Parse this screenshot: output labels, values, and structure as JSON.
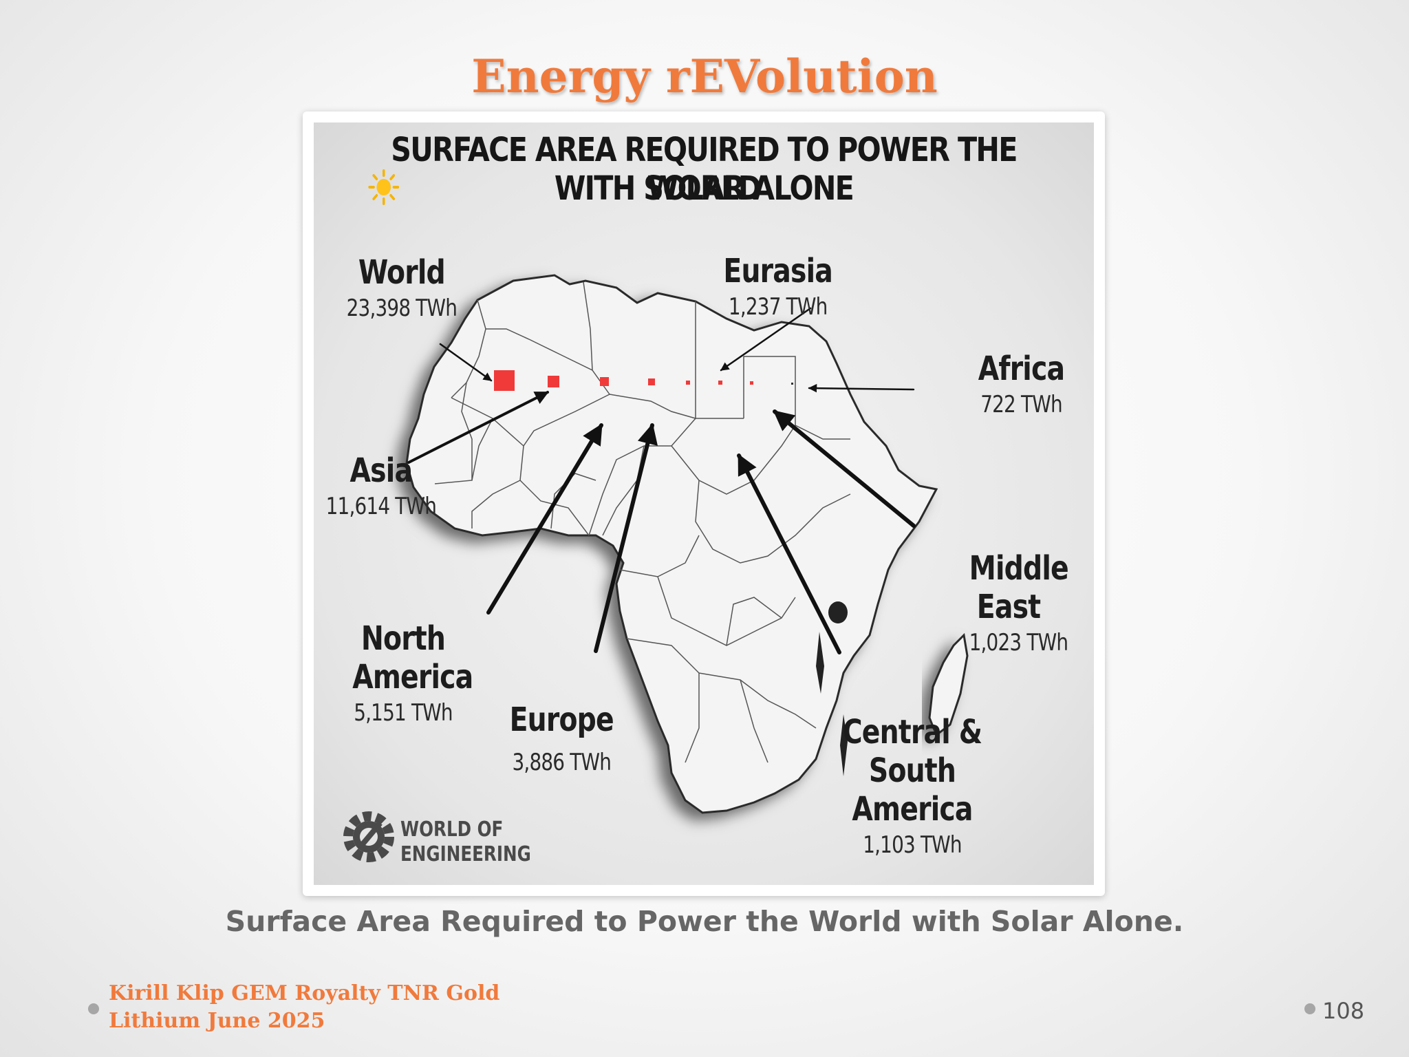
{
  "slide": {
    "title": "Energy rEVolution",
    "caption": "Surface Area Required to Power the World with Solar Alone.",
    "footer_line1": "Kirill Klip GEM Royalty TNR Gold",
    "footer_line2": "Lithium June 2025",
    "page_number": "108"
  },
  "infographic": {
    "title_line1": "SURFACE AREA REQUIRED TO POWER THE WORLD",
    "title_line2": "WITH SOLAR ALONE",
    "title_icon": "sun-icon",
    "highlight_color": "#f03a3a",
    "regions": [
      {
        "name": "World",
        "value": "23,398 TWh"
      },
      {
        "name": "Eurasia",
        "value": "1,237 TWh"
      },
      {
        "name": "Africa",
        "value": "722 TWh"
      },
      {
        "name": "Asia",
        "value": "11,614 TWh"
      },
      {
        "name": "Middle East",
        "value": "1,023 TWh"
      },
      {
        "name": "North America",
        "value": "5,151 TWh"
      },
      {
        "name": "Europe",
        "value": "3,886 TWh"
      },
      {
        "name": "Central & South America",
        "value": "1,103 TWh"
      }
    ],
    "logo": {
      "line1": "WORLD OF",
      "line2": "ENGINEERING",
      "icon": "gear-wrench-icon"
    }
  }
}
